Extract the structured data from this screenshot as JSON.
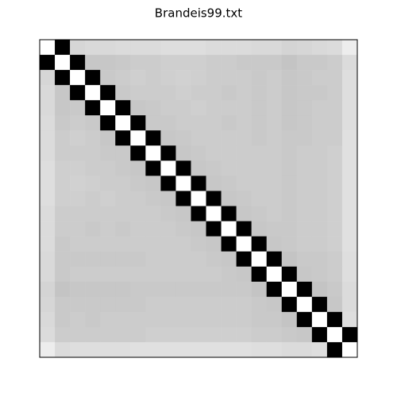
{
  "chart_data": {
    "type": "heatmap",
    "title": "Brandeis99.txt",
    "colormap": "gray",
    "vlim": [
      0,
      1
    ],
    "values": [
      [
        1,
        0,
        0.84,
        0.85,
        0.85,
        0.86,
        0.86,
        0.86,
        0.87,
        0.87,
        0.87,
        0.86,
        0.86,
        0.86,
        0.85,
        0.85,
        0.83,
        0.84,
        0.85,
        0.86,
        0.93
      ],
      [
        0,
        1,
        0,
        0.78,
        0.78,
        0.79,
        0.8,
        0.8,
        0.81,
        0.81,
        0.81,
        0.8,
        0.8,
        0.79,
        0.79,
        0.79,
        0.77,
        0.79,
        0.79,
        0.8,
        0.86
      ],
      [
        0.84,
        0,
        1,
        0,
        0.79,
        0.8,
        0.81,
        0.8,
        0.81,
        0.82,
        0.81,
        0.8,
        0.8,
        0.8,
        0.79,
        0.8,
        0.78,
        0.79,
        0.8,
        0.8,
        0.87
      ],
      [
        0.85,
        0.78,
        0,
        1,
        0,
        0.79,
        0.8,
        0.8,
        0.8,
        0.81,
        0.8,
        0.8,
        0.79,
        0.8,
        0.79,
        0.8,
        0.78,
        0.79,
        0.79,
        0.8,
        0.87
      ],
      [
        0.85,
        0.78,
        0.79,
        0,
        1,
        0,
        0.78,
        0.79,
        0.8,
        0.8,
        0.81,
        0.8,
        0.8,
        0.8,
        0.79,
        0.8,
        0.78,
        0.79,
        0.8,
        0.8,
        0.87
      ],
      [
        0.86,
        0.79,
        0.8,
        0.79,
        0,
        1,
        0,
        0.79,
        0.79,
        0.8,
        0.8,
        0.8,
        0.79,
        0.8,
        0.79,
        0.8,
        0.78,
        0.79,
        0.8,
        0.8,
        0.87
      ],
      [
        0.86,
        0.8,
        0.81,
        0.8,
        0.78,
        0,
        1,
        0,
        0.78,
        0.79,
        0.8,
        0.8,
        0.8,
        0.8,
        0.79,
        0.8,
        0.79,
        0.79,
        0.8,
        0.8,
        0.88
      ],
      [
        0.86,
        0.8,
        0.8,
        0.8,
        0.79,
        0.79,
        0,
        1,
        0,
        0.78,
        0.79,
        0.8,
        0.8,
        0.8,
        0.8,
        0.8,
        0.79,
        0.8,
        0.8,
        0.81,
        0.88
      ],
      [
        0.87,
        0.81,
        0.81,
        0.8,
        0.8,
        0.79,
        0.78,
        0,
        1,
        0,
        0.78,
        0.79,
        0.8,
        0.8,
        0.8,
        0.8,
        0.79,
        0.8,
        0.8,
        0.81,
        0.88
      ],
      [
        0.87,
        0.81,
        0.82,
        0.81,
        0.8,
        0.8,
        0.79,
        0.78,
        0,
        1,
        0,
        0.78,
        0.79,
        0.8,
        0.8,
        0.8,
        0.79,
        0.8,
        0.8,
        0.81,
        0.88
      ],
      [
        0.87,
        0.81,
        0.81,
        0.8,
        0.81,
        0.8,
        0.8,
        0.79,
        0.78,
        0,
        1,
        0,
        0.78,
        0.79,
        0.8,
        0.8,
        0.79,
        0.8,
        0.8,
        0.81,
        0.88
      ],
      [
        0.86,
        0.8,
        0.8,
        0.8,
        0.8,
        0.8,
        0.8,
        0.8,
        0.79,
        0.78,
        0,
        1,
        0,
        0.78,
        0.79,
        0.8,
        0.79,
        0.8,
        0.8,
        0.81,
        0.88
      ],
      [
        0.86,
        0.8,
        0.8,
        0.79,
        0.8,
        0.79,
        0.8,
        0.8,
        0.8,
        0.79,
        0.78,
        0,
        1,
        0,
        0.78,
        0.79,
        0.79,
        0.8,
        0.8,
        0.81,
        0.88
      ],
      [
        0.86,
        0.79,
        0.8,
        0.8,
        0.8,
        0.8,
        0.8,
        0.8,
        0.8,
        0.8,
        0.79,
        0.78,
        0,
        1,
        0,
        0.78,
        0.79,
        0.8,
        0.8,
        0.81,
        0.88
      ],
      [
        0.85,
        0.79,
        0.79,
        0.79,
        0.79,
        0.79,
        0.79,
        0.8,
        0.8,
        0.8,
        0.8,
        0.79,
        0.78,
        0,
        1,
        0,
        0.77,
        0.79,
        0.79,
        0.8,
        0.87
      ],
      [
        0.85,
        0.79,
        0.8,
        0.8,
        0.8,
        0.8,
        0.8,
        0.8,
        0.8,
        0.8,
        0.8,
        0.8,
        0.79,
        0.78,
        0,
        1,
        0,
        0.78,
        0.79,
        0.8,
        0.87
      ],
      [
        0.83,
        0.77,
        0.78,
        0.78,
        0.78,
        0.78,
        0.79,
        0.79,
        0.79,
        0.79,
        0.79,
        0.79,
        0.79,
        0.79,
        0.77,
        0,
        1,
        0,
        0.77,
        0.79,
        0.86
      ],
      [
        0.84,
        0.79,
        0.79,
        0.79,
        0.79,
        0.79,
        0.79,
        0.8,
        0.8,
        0.8,
        0.8,
        0.8,
        0.8,
        0.8,
        0.79,
        0.78,
        0,
        1,
        0,
        0.78,
        0.86
      ],
      [
        0.85,
        0.79,
        0.8,
        0.79,
        0.8,
        0.8,
        0.8,
        0.8,
        0.8,
        0.8,
        0.8,
        0.8,
        0.8,
        0.8,
        0.79,
        0.79,
        0.77,
        0,
        1,
        0,
        0.87
      ],
      [
        0.86,
        0.8,
        0.8,
        0.8,
        0.8,
        0.8,
        0.8,
        0.81,
        0.81,
        0.81,
        0.81,
        0.81,
        0.81,
        0.81,
        0.8,
        0.8,
        0.79,
        0.78,
        0,
        1,
        0
      ],
      [
        0.93,
        0.86,
        0.87,
        0.87,
        0.87,
        0.87,
        0.88,
        0.88,
        0.88,
        0.88,
        0.88,
        0.88,
        0.88,
        0.88,
        0.87,
        0.87,
        0.86,
        0.86,
        0.87,
        0,
        1
      ]
    ]
  }
}
